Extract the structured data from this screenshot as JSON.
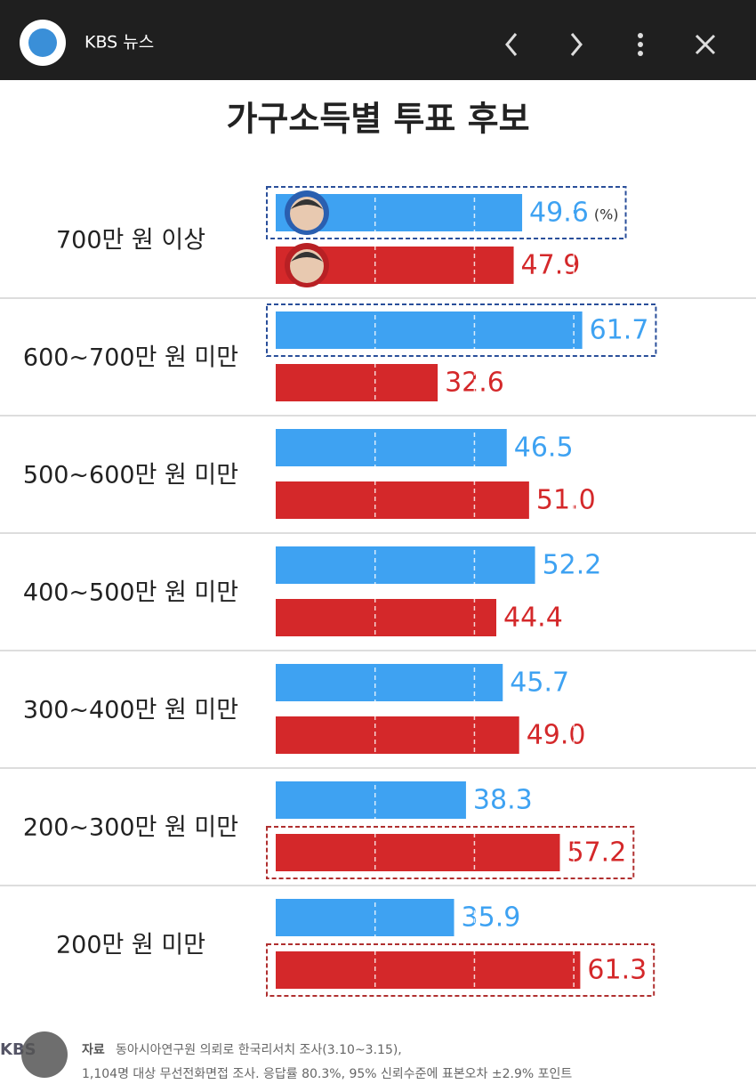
{
  "app_bar": {
    "title": "KBS 뉴스"
  },
  "chart_data": {
    "type": "bar",
    "orientation": "horizontal",
    "title": "가구소득별 투표 후보",
    "unit_note": "(%)",
    "categories": [
      "700만 원 이상",
      "600~700만 원 미만",
      "500~600만 원 미만",
      "400~500만 원 미만",
      "300~400만 원 미만",
      "200~300만 원 미만",
      "200만 원 미만"
    ],
    "series": [
      {
        "color": "#3ea2f2",
        "values": [
          49.6,
          61.7,
          46.5,
          52.2,
          45.7,
          38.3,
          35.9
        ],
        "value_labels": [
          "49.6",
          "61.7",
          "46.5",
          "52.2",
          "45.7",
          "38.3",
          "35.9"
        ]
      },
      {
        "color": "#d4282a",
        "values": [
          47.9,
          32.6,
          51.0,
          44.4,
          49.0,
          57.2,
          61.3
        ],
        "value_labels": [
          "47.9",
          "32.6",
          "51.0",
          "44.4",
          "49.0",
          "57.2",
          "61.3"
        ]
      }
    ],
    "highlight": [
      {
        "series": 0,
        "row": 0
      },
      {
        "series": 0,
        "row": 1
      },
      {
        "series": 1,
        "row": 5
      },
      {
        "series": 1,
        "row": 6
      }
    ],
    "xlim": [
      0,
      70
    ],
    "xticks": [
      20,
      40,
      60
    ],
    "grid": true
  },
  "footer": {
    "logo": "KBS",
    "label": "자료",
    "lines": [
      "동아시아연구원 의뢰로 한국리서치 조사(3.10~3.15),",
      "1,104명 대상 무선전화면접 조사. 응답률 80.3%, 95% 신뢰수준에 표본오차 ±2.9% 포인트"
    ]
  }
}
